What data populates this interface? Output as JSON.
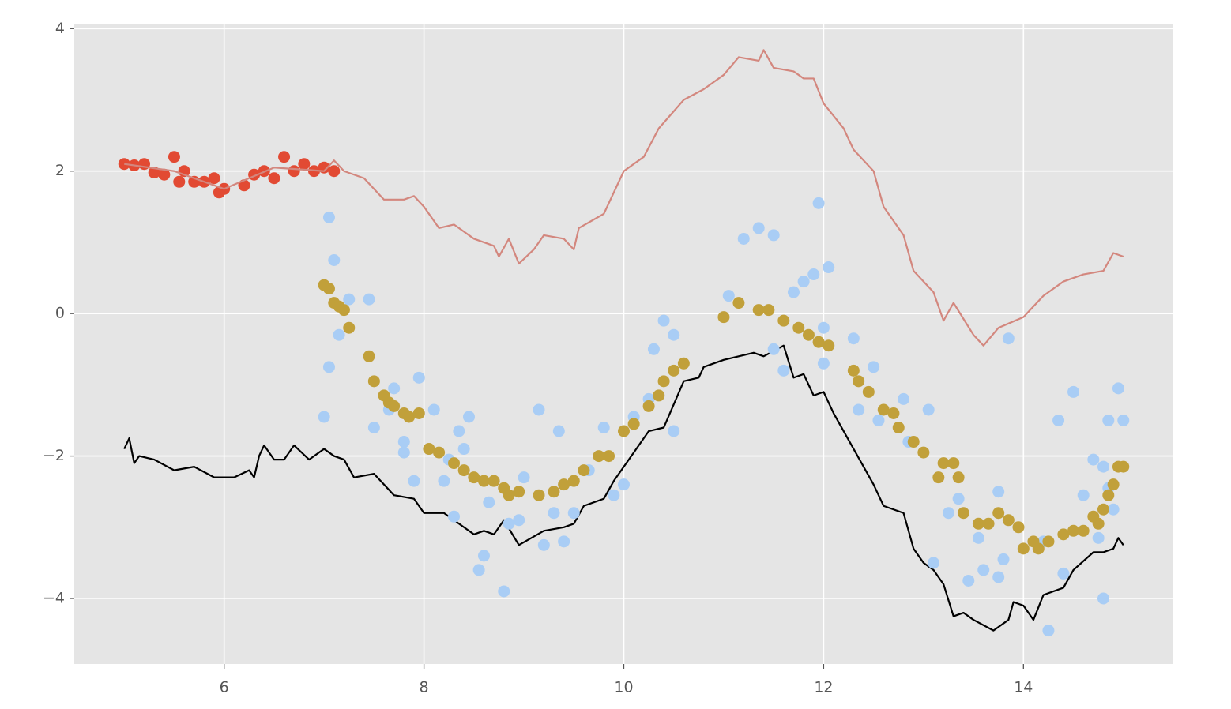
{
  "chart_data": {
    "type": "scatter",
    "xlim": [
      4.5,
      15.5
    ],
    "ylim": [
      -4.92,
      4.07
    ],
    "xticks": [
      6,
      8,
      10,
      12,
      14
    ],
    "yticks": [
      {
        "value": -4,
        "label": "−4"
      },
      {
        "value": -2,
        "label": "−2"
      },
      0,
      2,
      4
    ],
    "grid": true,
    "series": [
      {
        "type": "scatter",
        "color": "#e24a33",
        "x": [
          5.0,
          5.1,
          5.2,
          5.3,
          5.4,
          5.5,
          5.55,
          5.6,
          5.7,
          5.8,
          5.9,
          5.95,
          6.0,
          6.2,
          6.3,
          6.4,
          6.5,
          6.6,
          6.7,
          6.8,
          6.9,
          7.0,
          7.1
        ],
        "values": [
          2.1,
          2.08,
          2.1,
          1.98,
          1.95,
          2.2,
          1.85,
          2.0,
          1.85,
          1.85,
          1.9,
          1.7,
          1.75,
          1.8,
          1.95,
          2.0,
          1.9,
          2.2,
          2.0,
          2.1,
          2.0,
          2.05,
          2.0
        ]
      },
      {
        "type": "line",
        "color": "#d3877e",
        "x": [
          5.0,
          5.5,
          6.0,
          6.5,
          7.0,
          7.1,
          7.2,
          7.4,
          7.6,
          7.8,
          7.9,
          8.0,
          8.15,
          8.3,
          8.5,
          8.7,
          8.75,
          8.85,
          8.95,
          9.1,
          9.2,
          9.4,
          9.5,
          9.55,
          9.8,
          10.0,
          10.2,
          10.35,
          10.6,
          10.8,
          11.0,
          11.15,
          11.35,
          11.4,
          11.5,
          11.7,
          11.8,
          11.9,
          12.0,
          12.2,
          12.3,
          12.5,
          12.6,
          12.8,
          12.9,
          13.1,
          13.2,
          13.3,
          13.5,
          13.6,
          13.75,
          14.0,
          14.2,
          14.4,
          14.6,
          14.8,
          14.9,
          15.0
        ],
        "values": [
          2.1,
          2.0,
          1.75,
          2.05,
          2.0,
          2.15,
          2.0,
          1.9,
          1.6,
          1.6,
          1.65,
          1.5,
          1.2,
          1.25,
          1.05,
          0.95,
          0.8,
          1.05,
          0.7,
          0.9,
          1.1,
          1.05,
          0.9,
          1.2,
          1.4,
          2.0,
          2.2,
          2.6,
          3.0,
          3.15,
          3.35,
          3.6,
          3.55,
          3.7,
          3.45,
          3.4,
          3.3,
          3.3,
          2.95,
          2.6,
          2.3,
          2.0,
          1.5,
          1.1,
          0.6,
          0.3,
          -0.1,
          0.15,
          -0.3,
          -0.45,
          -0.2,
          -0.05,
          0.25,
          0.45,
          0.55,
          0.6,
          0.85,
          0.8
        ]
      },
      {
        "type": "line",
        "color": "#000000",
        "x": [
          5.0,
          5.05,
          5.1,
          5.15,
          5.3,
          5.5,
          5.7,
          5.9,
          6.1,
          6.25,
          6.3,
          6.35,
          6.4,
          6.5,
          6.6,
          6.7,
          6.85,
          7.0,
          7.1,
          7.2,
          7.3,
          7.5,
          7.6,
          7.7,
          7.9,
          8.0,
          8.2,
          8.4,
          8.5,
          8.6,
          8.7,
          8.8,
          8.95,
          9.2,
          9.4,
          9.5,
          9.6,
          9.8,
          9.9,
          10.0,
          10.1,
          10.25,
          10.4,
          10.6,
          10.75,
          10.8,
          11.0,
          11.3,
          11.4,
          11.6,
          11.7,
          11.8,
          11.9,
          12.0,
          12.1,
          12.3,
          12.5,
          12.6,
          12.8,
          12.9,
          13.0,
          13.1,
          13.2,
          13.3,
          13.4,
          13.5,
          13.7,
          13.85,
          13.9,
          14.0,
          14.1,
          14.2,
          14.4,
          14.5,
          14.7,
          14.8,
          14.9,
          14.95,
          15.0
        ],
        "values": [
          -1.9,
          -1.75,
          -2.1,
          -2.0,
          -2.05,
          -2.2,
          -2.15,
          -2.3,
          -2.3,
          -2.2,
          -2.3,
          -2.0,
          -1.85,
          -2.05,
          -2.05,
          -1.85,
          -2.05,
          -1.9,
          -2.0,
          -2.05,
          -2.3,
          -2.25,
          -2.4,
          -2.55,
          -2.6,
          -2.8,
          -2.8,
          -3.0,
          -3.1,
          -3.05,
          -3.1,
          -2.9,
          -3.25,
          -3.05,
          -3.0,
          -2.95,
          -2.7,
          -2.6,
          -2.35,
          -2.15,
          -1.95,
          -1.65,
          -1.6,
          -0.95,
          -0.9,
          -0.75,
          -0.65,
          -0.55,
          -0.6,
          -0.45,
          -0.9,
          -0.85,
          -1.15,
          -1.1,
          -1.4,
          -1.9,
          -2.4,
          -2.7,
          -2.8,
          -3.3,
          -3.5,
          -3.6,
          -3.8,
          -4.25,
          -4.2,
          -4.3,
          -4.45,
          -4.3,
          -4.05,
          -4.1,
          -4.3,
          -3.95,
          -3.85,
          -3.6,
          -3.35,
          -3.35,
          -3.3,
          -3.15,
          -3.25
        ]
      },
      {
        "type": "scatter",
        "color": "#a9cdf5",
        "x": [
          7.0,
          7.05,
          7.05,
          7.1,
          7.15,
          7.25,
          7.45,
          7.5,
          7.65,
          7.7,
          7.8,
          7.8,
          7.9,
          7.95,
          8.1,
          8.2,
          8.25,
          8.3,
          8.35,
          8.4,
          8.45,
          8.55,
          8.6,
          8.65,
          8.8,
          8.85,
          8.95,
          9.0,
          9.15,
          9.2,
          9.3,
          9.35,
          9.4,
          9.5,
          9.65,
          9.8,
          9.9,
          10.0,
          10.1,
          10.25,
          10.3,
          10.4,
          10.5,
          10.5,
          11.05,
          11.2,
          11.35,
          11.5,
          11.5,
          11.6,
          11.7,
          11.8,
          11.9,
          11.95,
          12.05,
          12.0,
          12.0,
          12.3,
          12.35,
          12.5,
          12.55,
          12.8,
          12.85,
          13.05,
          13.1,
          13.25,
          13.35,
          13.45,
          13.55,
          13.6,
          13.75,
          13.75,
          13.8,
          13.85,
          14.2,
          14.25,
          14.35,
          14.4,
          14.5,
          14.6,
          14.7,
          14.75,
          14.8,
          14.85,
          14.85,
          14.8,
          14.95,
          14.9,
          15.0
        ],
        "values": [
          -1.45,
          1.35,
          -0.75,
          0.75,
          -0.3,
          0.2,
          0.2,
          -1.6,
          -1.35,
          -1.05,
          -1.95,
          -1.8,
          -2.35,
          -0.9,
          -1.35,
          -2.35,
          -2.05,
          -2.85,
          -1.65,
          -1.9,
          -1.45,
          -3.6,
          -3.4,
          -2.65,
          -3.9,
          -2.95,
          -2.9,
          -2.3,
          -1.35,
          -3.25,
          -2.8,
          -1.65,
          -3.2,
          -2.8,
          -2.2,
          -1.6,
          -2.55,
          -2.4,
          -1.45,
          -1.2,
          -0.5,
          -0.1,
          -0.3,
          -1.65,
          0.25,
          1.05,
          1.2,
          1.1,
          -0.5,
          -0.8,
          0.3,
          0.45,
          0.55,
          1.55,
          0.65,
          -0.7,
          -0.2,
          -0.35,
          -1.35,
          -0.75,
          -1.5,
          -1.2,
          -1.8,
          -1.35,
          -3.5,
          -2.8,
          -2.6,
          -3.75,
          -3.15,
          -3.6,
          -2.5,
          -3.7,
          -3.45,
          -0.35,
          -3.2,
          -4.45,
          -1.5,
          -3.65,
          -1.1,
          -2.55,
          -2.05,
          -3.15,
          -2.15,
          -2.45,
          -1.5,
          -4.0,
          -1.05,
          -2.75,
          -1.5
        ]
      },
      {
        "type": "scatter",
        "color": "#c1a03a",
        "x": [
          7.0,
          7.05,
          7.1,
          7.15,
          7.2,
          7.25,
          7.45,
          7.5,
          7.6,
          7.65,
          7.7,
          7.8,
          7.85,
          7.95,
          8.05,
          8.15,
          8.3,
          8.4,
          8.5,
          8.6,
          8.7,
          8.8,
          8.85,
          8.95,
          9.15,
          9.3,
          9.4,
          9.5,
          9.6,
          9.75,
          9.85,
          10.0,
          10.1,
          10.25,
          10.35,
          10.4,
          10.5,
          10.6,
          11.0,
          11.15,
          11.35,
          11.45,
          11.6,
          11.75,
          11.85,
          11.95,
          12.05,
          12.3,
          12.35,
          12.45,
          12.6,
          12.7,
          12.75,
          12.9,
          13.0,
          13.15,
          13.2,
          13.3,
          13.35,
          13.4,
          13.55,
          13.65,
          13.75,
          13.85,
          13.95,
          14.0,
          14.1,
          14.15,
          14.25,
          14.4,
          14.5,
          14.6,
          14.7,
          14.75,
          14.8,
          14.85,
          14.9,
          14.95,
          15.0
        ],
        "values": [
          0.4,
          0.35,
          0.15,
          0.1,
          0.05,
          -0.2,
          -0.6,
          -0.95,
          -1.15,
          -1.25,
          -1.3,
          -1.4,
          -1.45,
          -1.4,
          -1.9,
          -1.95,
          -2.1,
          -2.2,
          -2.3,
          -2.35,
          -2.35,
          -2.45,
          -2.55,
          -2.5,
          -2.55,
          -2.5,
          -2.4,
          -2.35,
          -2.2,
          -2.0,
          -2.0,
          -1.65,
          -1.55,
          -1.3,
          -1.15,
          -0.95,
          -0.8,
          -0.7,
          -0.05,
          0.15,
          0.05,
          0.05,
          -0.1,
          -0.2,
          -0.3,
          -0.4,
          -0.45,
          -0.8,
          -0.95,
          -1.1,
          -1.35,
          -1.4,
          -1.6,
          -1.8,
          -1.95,
          -2.3,
          -2.1,
          -2.1,
          -2.3,
          -2.8,
          -2.95,
          -2.95,
          -2.8,
          -2.9,
          -3.0,
          -3.3,
          -3.2,
          -3.3,
          -3.2,
          -3.1,
          -3.05,
          -3.05,
          -2.85,
          -2.95,
          -2.75,
          -2.55,
          -2.4,
          -2.15,
          -2.15
        ]
      }
    ]
  }
}
